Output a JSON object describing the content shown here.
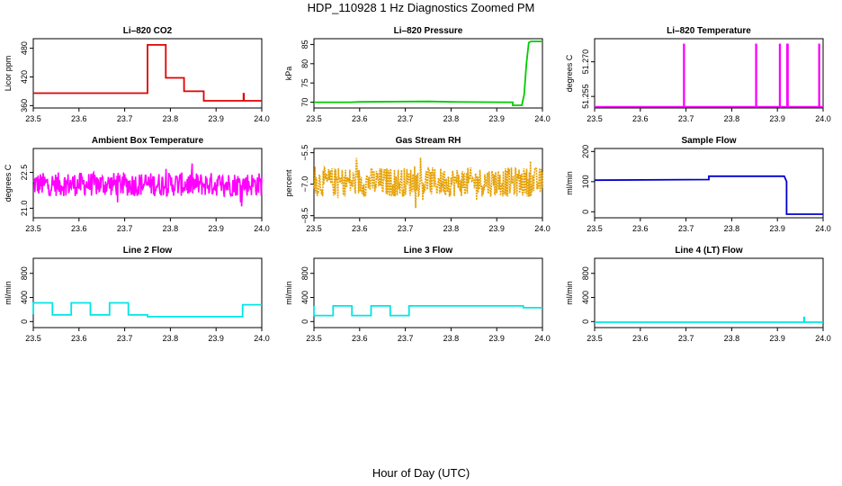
{
  "title": "HDP_110928  1 Hz Diagnostics Zoomed PM",
  "xlabel": "Hour of Day (UTC)",
  "chart_data": [
    {
      "type": "line",
      "title": "Li–820 CO2",
      "ylabel": "Licor ppm",
      "color": "#e00000",
      "xlim": [
        23.5,
        24.0
      ],
      "ylim": [
        355,
        500
      ],
      "xticks": [
        "23.5",
        "23.6",
        "23.7",
        "23.8",
        "23.9",
        "24.0"
      ],
      "yticks": [
        {
          "v": 360,
          "t": "360"
        },
        {
          "v": 420,
          "t": "420"
        },
        {
          "v": 480,
          "t": "480"
        }
      ],
      "noise": 0,
      "x": [
        23.5,
        23.75,
        23.75,
        23.77,
        23.77,
        23.79,
        23.79,
        23.83,
        23.83,
        23.873,
        23.873,
        23.96,
        23.96,
        23.961,
        23.961,
        24.0
      ],
      "y": [
        386,
        386,
        487,
        487,
        487,
        487,
        418,
        418,
        390,
        390,
        370,
        370,
        385,
        385,
        370,
        370
      ]
    },
    {
      "type": "line",
      "title": "Li–820 Pressure",
      "ylabel": "kPa",
      "color": "#00cc00",
      "xlim": [
        23.5,
        24.0
      ],
      "ylim": [
        68.5,
        86.5
      ],
      "xticks": [
        "23.5",
        "23.6",
        "23.7",
        "23.8",
        "23.9",
        "24.0"
      ],
      "yticks": [
        {
          "v": 70,
          "t": "70"
        },
        {
          "v": 75,
          "t": "75"
        },
        {
          "v": 80,
          "t": "80"
        },
        {
          "v": 85,
          "t": "85"
        }
      ],
      "noise": 0,
      "x": [
        23.5,
        23.58,
        23.6,
        23.75,
        23.8,
        23.92,
        23.935,
        23.935,
        23.955,
        23.96,
        23.965,
        23.97,
        23.975,
        24.0
      ],
      "y": [
        70.0,
        70.0,
        70.1,
        70.2,
        70.1,
        70.0,
        70.0,
        69.2,
        69.2,
        72,
        80,
        85.5,
        85.8,
        85.8
      ]
    },
    {
      "type": "line",
      "title": "Li–820 Temperature",
      "ylabel": "degrees C",
      "color": "#ff00ff",
      "xlim": [
        23.5,
        24.0
      ],
      "ylim": [
        51.25,
        51.28
      ],
      "xticks": [
        "23.5",
        "23.6",
        "23.7",
        "23.8",
        "23.9",
        "24.0"
      ],
      "yticks": [
        {
          "v": 51.255,
          "t": "51.255"
        },
        {
          "v": 51.27,
          "t": "51.270"
        }
      ],
      "noise": 0,
      "x": [
        23.5,
        23.695,
        23.695,
        23.696,
        23.696,
        23.853,
        23.853,
        23.854,
        23.854,
        23.905,
        23.905,
        23.906,
        23.906,
        23.921,
        23.921,
        23.923,
        23.923,
        23.991,
        23.991,
        23.992,
        23.992,
        24.0
      ],
      "y": [
        51.2505,
        51.2505,
        51.2775,
        51.2775,
        51.2505,
        51.2505,
        51.2775,
        51.2775,
        51.2505,
        51.2505,
        51.2775,
        51.2775,
        51.2505,
        51.2505,
        51.2775,
        51.2775,
        51.2505,
        51.2505,
        51.2775,
        51.2775,
        51.2505,
        51.2505
      ]
    },
    {
      "type": "line",
      "title": "Ambient Box Temperature",
      "ylabel": "degrees C",
      "color": "#ff00ff",
      "xlim": [
        23.5,
        24.0
      ],
      "ylim": [
        20.6,
        23.5
      ],
      "xticks": [
        "23.5",
        "23.6",
        "23.7",
        "23.8",
        "23.9",
        "24.0"
      ],
      "yticks": [
        {
          "v": 21.0,
          "t": "21.0"
        },
        {
          "v": 22.5,
          "t": "22.5"
        }
      ],
      "noise": 0.5,
      "x": [
        23.5,
        24.0
      ],
      "y": [
        22.0,
        22.0
      ]
    },
    {
      "type": "line",
      "title": "Gas Stream RH",
      "ylabel": "percent",
      "color": "#e6a000",
      "xlim": [
        23.5,
        24.0
      ],
      "ylim": [
        -8.6,
        -5.3
      ],
      "xticks": [
        "23.5",
        "23.6",
        "23.7",
        "23.8",
        "23.9",
        "24.0"
      ],
      "yticks": [
        {
          "v": -8.5,
          "t": "−8.5"
        },
        {
          "v": -7.0,
          "t": "−7.0"
        },
        {
          "v": -5.5,
          "t": "−5.5"
        }
      ],
      "noise": 0.7,
      "x": [
        23.5,
        24.0
      ],
      "y": [
        -6.9,
        -6.9
      ]
    },
    {
      "type": "line",
      "title": "Sample Flow",
      "ylabel": "ml/min",
      "color": "#0000cc",
      "xlim": [
        23.5,
        24.0
      ],
      "ylim": [
        -20,
        210
      ],
      "xticks": [
        "23.5",
        "23.6",
        "23.7",
        "23.8",
        "23.9",
        "24.0"
      ],
      "yticks": [
        {
          "v": 0,
          "t": "0"
        },
        {
          "v": 100,
          "t": "100"
        },
        {
          "v": 200,
          "t": "200"
        }
      ],
      "noise": 0,
      "x": [
        23.5,
        23.75,
        23.75,
        23.915,
        23.92,
        23.92,
        24.0
      ],
      "y": [
        105,
        107,
        118,
        118,
        100,
        -8,
        -8
      ]
    },
    {
      "type": "line",
      "title": "Line 2 Flow",
      "ylabel": "ml/min",
      "color": "#00e5e5",
      "xlim": [
        23.5,
        24.0
      ],
      "ylim": [
        -100,
        1050
      ],
      "xticks": [
        "23.5",
        "23.6",
        "23.7",
        "23.8",
        "23.9",
        "24.0"
      ],
      "yticks": [
        {
          "v": 0,
          "t": "0"
        },
        {
          "v": 400,
          "t": "400"
        },
        {
          "v": 800,
          "t": "800"
        }
      ],
      "noise": 0,
      "x": [
        23.5,
        23.5,
        23.542,
        23.542,
        23.583,
        23.583,
        23.625,
        23.625,
        23.667,
        23.667,
        23.708,
        23.708,
        23.75,
        23.75,
        23.958,
        23.958,
        24.0
      ],
      "y": [
        120,
        310,
        310,
        110,
        110,
        310,
        310,
        110,
        110,
        310,
        310,
        110,
        110,
        80,
        80,
        280,
        280
      ]
    },
    {
      "type": "line",
      "title": "Line 3 Flow",
      "ylabel": "ml/min",
      "color": "#00e5e5",
      "xlim": [
        23.5,
        24.0
      ],
      "ylim": [
        -100,
        1050
      ],
      "xticks": [
        "23.5",
        "23.6",
        "23.7",
        "23.8",
        "23.9",
        "24.0"
      ],
      "yticks": [
        {
          "v": 0,
          "t": "0"
        },
        {
          "v": 400,
          "t": "400"
        },
        {
          "v": 800,
          "t": "800"
        }
      ],
      "noise": 0,
      "x": [
        23.5,
        23.5,
        23.5,
        23.542,
        23.542,
        23.583,
        23.583,
        23.625,
        23.625,
        23.667,
        23.667,
        23.708,
        23.708,
        23.958,
        23.958,
        24.0
      ],
      "y": [
        260,
        260,
        100,
        100,
        260,
        260,
        100,
        100,
        260,
        260,
        100,
        100,
        260,
        260,
        230,
        230
      ]
    },
    {
      "type": "line",
      "title": "Line 4 (LT) Flow",
      "ylabel": "ml/min",
      "color": "#00e5e5",
      "xlim": [
        23.5,
        24.0
      ],
      "ylim": [
        -100,
        1050
      ],
      "xticks": [
        "23.5",
        "23.6",
        "23.7",
        "23.8",
        "23.9",
        "24.0"
      ],
      "yticks": [
        {
          "v": 0,
          "t": "0"
        },
        {
          "v": 400,
          "t": "400"
        },
        {
          "v": 800,
          "t": "800"
        }
      ],
      "noise": 0,
      "x": [
        23.5,
        23.958,
        23.958,
        23.959,
        23.959,
        24.0
      ],
      "y": [
        -10,
        -10,
        70,
        70,
        -10,
        -10
      ]
    }
  ]
}
